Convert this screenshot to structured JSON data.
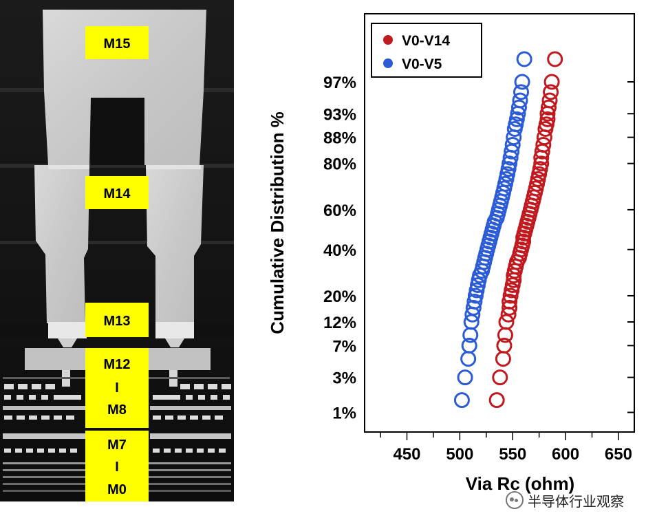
{
  "cross_section": {
    "labels": [
      "M15",
      "M14",
      "M13",
      "M12",
      "I",
      "M8",
      "M7",
      "I",
      "M0"
    ]
  },
  "chart_data": {
    "type": "scatter",
    "xlabel": "Via Rc (ohm)",
    "ylabel": "Cumulative Distribution %",
    "xlim": [
      410,
      665
    ],
    "xticks": [
      450,
      500,
      550,
      600,
      650
    ],
    "y_scale": "probability",
    "ylim_percent": [
      0.5,
      99.7
    ],
    "yticks_percent": [
      1,
      3,
      7,
      12,
      20,
      40,
      60,
      80,
      88,
      93,
      97
    ],
    "ytick_labels": [
      "1%",
      "3%",
      "7%",
      "12%",
      "20%",
      "40%",
      "60%",
      "80%",
      "88%",
      "93%",
      "97%"
    ],
    "legend_position": "top-left",
    "grid": false,
    "series": [
      {
        "name": "V0-V14",
        "color": "#c0191f",
        "x": [
          535,
          538,
          541,
          542,
          543,
          544,
          546,
          547,
          547,
          548,
          549,
          550,
          551,
          551,
          552,
          553,
          554,
          556,
          557,
          558,
          559,
          560,
          560,
          561,
          562,
          563,
          564,
          565,
          566,
          567,
          568,
          569,
          570,
          571,
          572,
          573,
          574,
          575,
          576,
          577,
          577,
          578,
          579,
          580,
          581,
          582,
          583,
          583,
          584,
          585,
          586,
          587,
          590
        ],
        "y_percent": [
          1.5,
          3,
          5,
          7,
          9,
          12,
          14,
          16,
          18,
          20,
          22,
          24,
          26,
          28,
          30,
          32,
          34,
          36,
          38,
          40,
          42,
          44,
          46,
          48,
          50,
          52,
          54,
          56,
          58,
          60,
          62,
          64,
          66,
          68,
          70,
          72,
          74,
          76,
          78,
          80,
          82,
          84,
          86,
          88,
          90,
          91,
          92,
          93,
          94,
          95,
          96,
          97,
          98.5
        ]
      },
      {
        "name": "V0-V5",
        "color": "#2c5bd6",
        "x": [
          502,
          505,
          508,
          509,
          510,
          511,
          512,
          513,
          514,
          515,
          516,
          517,
          518,
          519,
          521,
          522,
          523,
          524,
          525,
          526,
          527,
          528,
          529,
          530,
          531,
          532,
          533,
          535,
          536,
          537,
          538,
          539,
          540,
          541,
          542,
          543,
          544,
          545,
          546,
          547,
          548,
          549,
          550,
          551,
          552,
          553,
          554,
          555,
          556,
          557,
          558,
          559,
          561
        ],
        "y_percent": [
          1.5,
          3,
          5,
          7,
          9,
          12,
          14,
          16,
          18,
          20,
          22,
          24,
          26,
          28,
          30,
          32,
          34,
          36,
          38,
          40,
          42,
          44,
          46,
          48,
          50,
          52,
          54,
          56,
          58,
          60,
          62,
          64,
          66,
          68,
          70,
          72,
          74,
          76,
          78,
          80,
          82,
          84,
          86,
          88,
          90,
          91,
          92,
          93,
          94,
          95,
          96,
          97,
          98.5
        ]
      }
    ]
  },
  "watermark": {
    "text": "半导体行业观察"
  }
}
